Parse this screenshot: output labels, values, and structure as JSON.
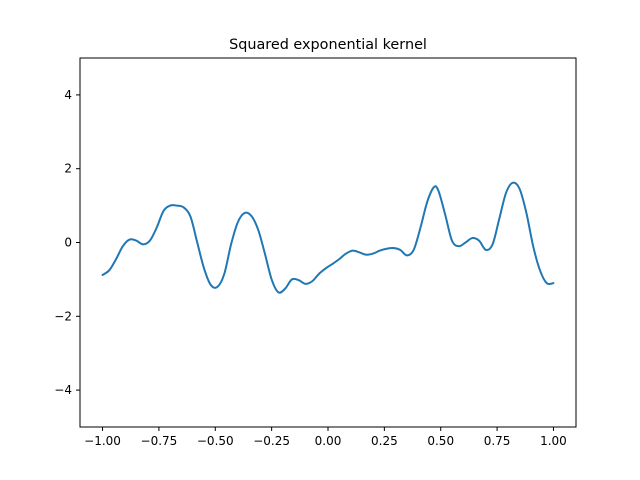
{
  "chart_data": {
    "type": "line",
    "title": "Squared exponential kernel",
    "xlabel": "",
    "ylabel": "",
    "xlim": [
      -1.1,
      1.1
    ],
    "ylim": [
      -5,
      5
    ],
    "grid": false,
    "legend": "none",
    "x_ticks": [
      {
        "value": -1.0,
        "label": "−1.00"
      },
      {
        "value": -0.75,
        "label": "−0.75"
      },
      {
        "value": -0.5,
        "label": "−0.50"
      },
      {
        "value": -0.25,
        "label": "−0.25"
      },
      {
        "value": 0.0,
        "label": "0.00"
      },
      {
        "value": 0.25,
        "label": "0.25"
      },
      {
        "value": 0.5,
        "label": "0.50"
      },
      {
        "value": 0.75,
        "label": "0.75"
      },
      {
        "value": 1.0,
        "label": "1.00"
      }
    ],
    "y_ticks": [
      {
        "value": -4,
        "label": "−4"
      },
      {
        "value": -2,
        "label": "−2"
      },
      {
        "value": 0,
        "label": "0"
      },
      {
        "value": 2,
        "label": "2"
      },
      {
        "value": 4,
        "label": "4"
      }
    ],
    "series": [
      {
        "color": "#1f77b4",
        "points": [
          [
            -1.0,
            -0.88
          ],
          [
            -0.97,
            -0.75
          ],
          [
            -0.94,
            -0.45
          ],
          [
            -0.91,
            -0.1
          ],
          [
            -0.88,
            0.08
          ],
          [
            -0.85,
            0.05
          ],
          [
            -0.82,
            -0.05
          ],
          [
            -0.79,
            0.05
          ],
          [
            -0.76,
            0.4
          ],
          [
            -0.73,
            0.85
          ],
          [
            -0.7,
            1.0
          ],
          [
            -0.67,
            1.0
          ],
          [
            -0.64,
            0.95
          ],
          [
            -0.61,
            0.7
          ],
          [
            -0.58,
            0.0
          ],
          [
            -0.55,
            -0.7
          ],
          [
            -0.52,
            -1.15
          ],
          [
            -0.49,
            -1.2
          ],
          [
            -0.46,
            -0.85
          ],
          [
            -0.43,
            -0.05
          ],
          [
            -0.4,
            0.55
          ],
          [
            -0.37,
            0.8
          ],
          [
            -0.34,
            0.72
          ],
          [
            -0.31,
            0.35
          ],
          [
            -0.28,
            -0.3
          ],
          [
            -0.25,
            -1.0
          ],
          [
            -0.22,
            -1.35
          ],
          [
            -0.19,
            -1.25
          ],
          [
            -0.16,
            -1.0
          ],
          [
            -0.13,
            -1.02
          ],
          [
            -0.1,
            -1.12
          ],
          [
            -0.07,
            -1.05
          ],
          [
            -0.04,
            -0.85
          ],
          [
            -0.01,
            -0.7
          ],
          [
            0.02,
            -0.58
          ],
          [
            0.05,
            -0.45
          ],
          [
            0.08,
            -0.3
          ],
          [
            0.11,
            -0.22
          ],
          [
            0.14,
            -0.27
          ],
          [
            0.17,
            -0.33
          ],
          [
            0.2,
            -0.3
          ],
          [
            0.23,
            -0.22
          ],
          [
            0.26,
            -0.17
          ],
          [
            0.29,
            -0.15
          ],
          [
            0.32,
            -0.2
          ],
          [
            0.35,
            -0.35
          ],
          [
            0.38,
            -0.2
          ],
          [
            0.41,
            0.4
          ],
          [
            0.44,
            1.1
          ],
          [
            0.47,
            1.5
          ],
          [
            0.49,
            1.4
          ],
          [
            0.52,
            0.75
          ],
          [
            0.55,
            0.05
          ],
          [
            0.58,
            -0.1
          ],
          [
            0.61,
            0.0
          ],
          [
            0.64,
            0.12
          ],
          [
            0.67,
            0.05
          ],
          [
            0.7,
            -0.2
          ],
          [
            0.73,
            -0.05
          ],
          [
            0.76,
            0.65
          ],
          [
            0.79,
            1.35
          ],
          [
            0.82,
            1.62
          ],
          [
            0.85,
            1.45
          ],
          [
            0.88,
            0.8
          ],
          [
            0.91,
            -0.1
          ],
          [
            0.94,
            -0.75
          ],
          [
            0.97,
            -1.1
          ],
          [
            1.0,
            -1.1
          ]
        ]
      }
    ]
  }
}
